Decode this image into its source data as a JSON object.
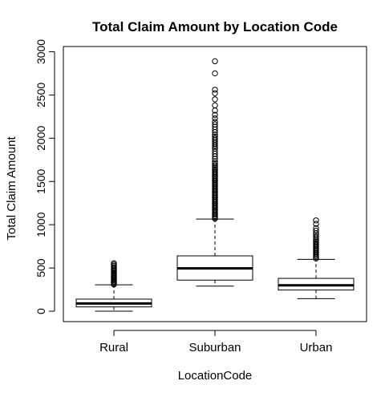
{
  "chart_data": {
    "type": "box",
    "title": "Total Claim Amount by Location Code",
    "xlabel": "LocationCode",
    "ylabel": "Total Claim Amount",
    "ylim": [
      -120,
      3060
    ],
    "yticks": [
      0,
      500,
      1000,
      1500,
      2000,
      2500,
      3000
    ],
    "grid": false,
    "categories": [
      "Rural",
      "Suburban",
      "Urban"
    ],
    "boxes": [
      {
        "category": "Rural",
        "whisker_low": 0,
        "q1": 50,
        "median": 90,
        "q3": 140,
        "whisker_high": 305,
        "outliers": [
          310,
          322,
          335,
          345,
          358,
          370,
          382,
          395,
          405,
          418,
          430,
          442,
          455,
          468,
          480,
          495,
          510,
          525,
          540,
          555
        ]
      },
      {
        "category": "Suburban",
        "whisker_low": 290,
        "q1": 360,
        "median": 495,
        "q3": 640,
        "whisker_high": 1065,
        "outliers": [
          1070,
          1085,
          1100,
          1115,
          1130,
          1145,
          1160,
          1175,
          1190,
          1205,
          1220,
          1235,
          1250,
          1265,
          1280,
          1295,
          1310,
          1325,
          1340,
          1355,
          1370,
          1385,
          1400,
          1415,
          1430,
          1445,
          1460,
          1475,
          1490,
          1505,
          1520,
          1535,
          1550,
          1565,
          1580,
          1595,
          1610,
          1625,
          1640,
          1655,
          1670,
          1690,
          1710,
          1730,
          1760,
          1790,
          1820,
          1850,
          1880,
          1900,
          1920,
          1940,
          1960,
          1980,
          2000,
          2020,
          2040,
          2070,
          2100,
          2130,
          2160,
          2190,
          2230,
          2270,
          2320,
          2380,
          2450,
          2520,
          2560,
          2750,
          2890
        ]
      },
      {
        "category": "Urban",
        "whisker_low": 145,
        "q1": 245,
        "median": 300,
        "q3": 380,
        "whisker_high": 600,
        "outliers": [
          610,
          625,
          640,
          655,
          670,
          685,
          700,
          715,
          730,
          745,
          760,
          775,
          790,
          805,
          820,
          840,
          860,
          880,
          900,
          930,
          960,
          1010,
          1050
        ]
      }
    ]
  }
}
